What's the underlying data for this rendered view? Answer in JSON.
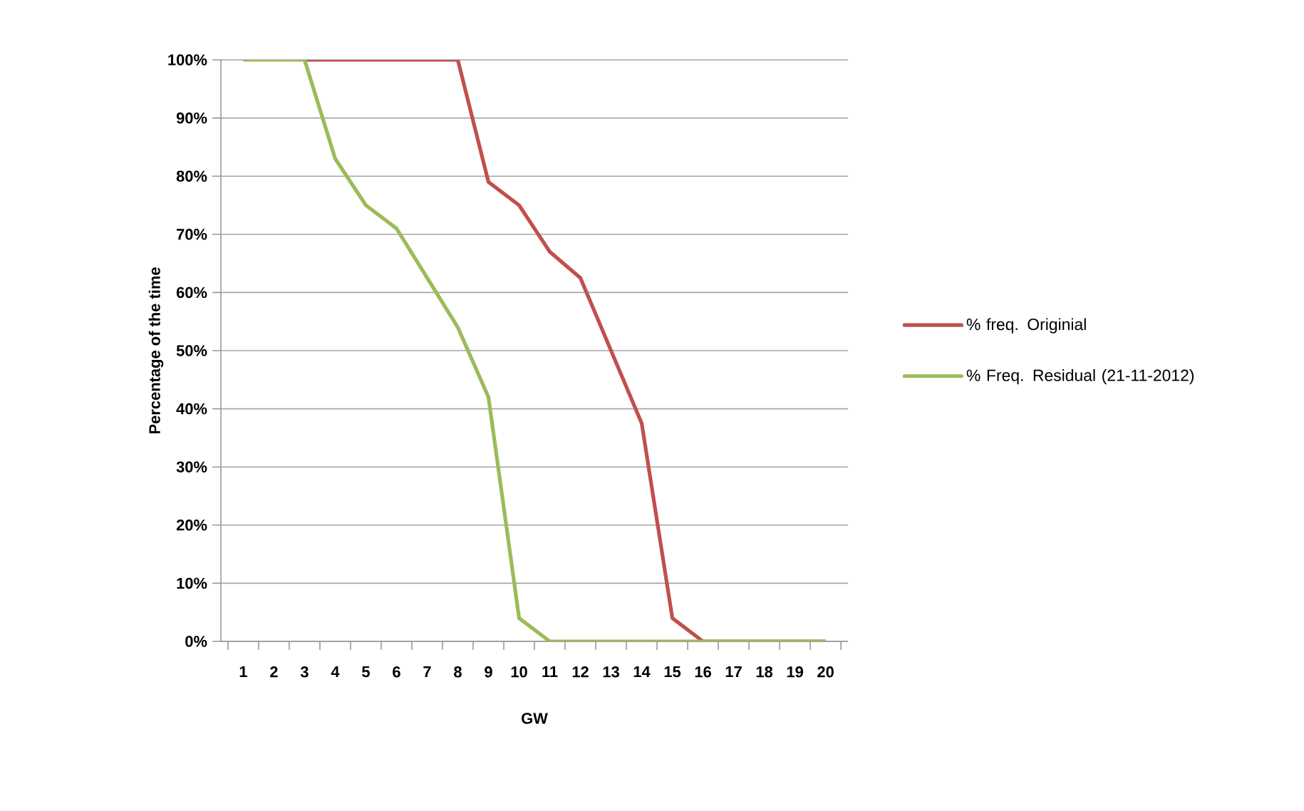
{
  "chart_data": {
    "type": "line",
    "xlabel": "GW",
    "ylabel": "Percentage of the time",
    "categories": [
      "1",
      "2",
      "3",
      "4",
      "5",
      "6",
      "7",
      "8",
      "9",
      "10",
      "11",
      "12",
      "13",
      "14",
      "15",
      "16",
      "17",
      "18",
      "19",
      "20"
    ],
    "series": [
      {
        "name": "% freq. Originial",
        "color": "#c0504d",
        "values": [
          null,
          null,
          100,
          100,
          100,
          100,
          100,
          100,
          79,
          75,
          67,
          62.5,
          50,
          37.5,
          4,
          0,
          0,
          0,
          0,
          0
        ]
      },
      {
        "name": "% Freq. Residual (21-11-2012)",
        "color": "#9bbb59",
        "values": [
          100,
          100,
          100,
          83,
          75,
          71,
          62.5,
          54,
          42,
          4,
          0,
          0,
          0,
          0,
          0,
          0,
          0,
          0,
          0,
          0
        ]
      }
    ],
    "ylim": [
      0,
      100
    ],
    "yticks": [
      {
        "value": 0,
        "label": "0%"
      },
      {
        "value": 10,
        "label": "10%"
      },
      {
        "value": 20,
        "label": "20%"
      },
      {
        "value": 30,
        "label": "30%"
      },
      {
        "value": 40,
        "label": "40%"
      },
      {
        "value": 50,
        "label": "50%"
      },
      {
        "value": 60,
        "label": "60%"
      },
      {
        "value": 70,
        "label": "70%"
      },
      {
        "value": 80,
        "label": "80%"
      },
      {
        "value": 90,
        "label": "90%"
      },
      {
        "value": 100,
        "label": "100%"
      }
    ],
    "grid": "y",
    "legend": "right",
    "marker": "none",
    "line_style": "solid"
  }
}
